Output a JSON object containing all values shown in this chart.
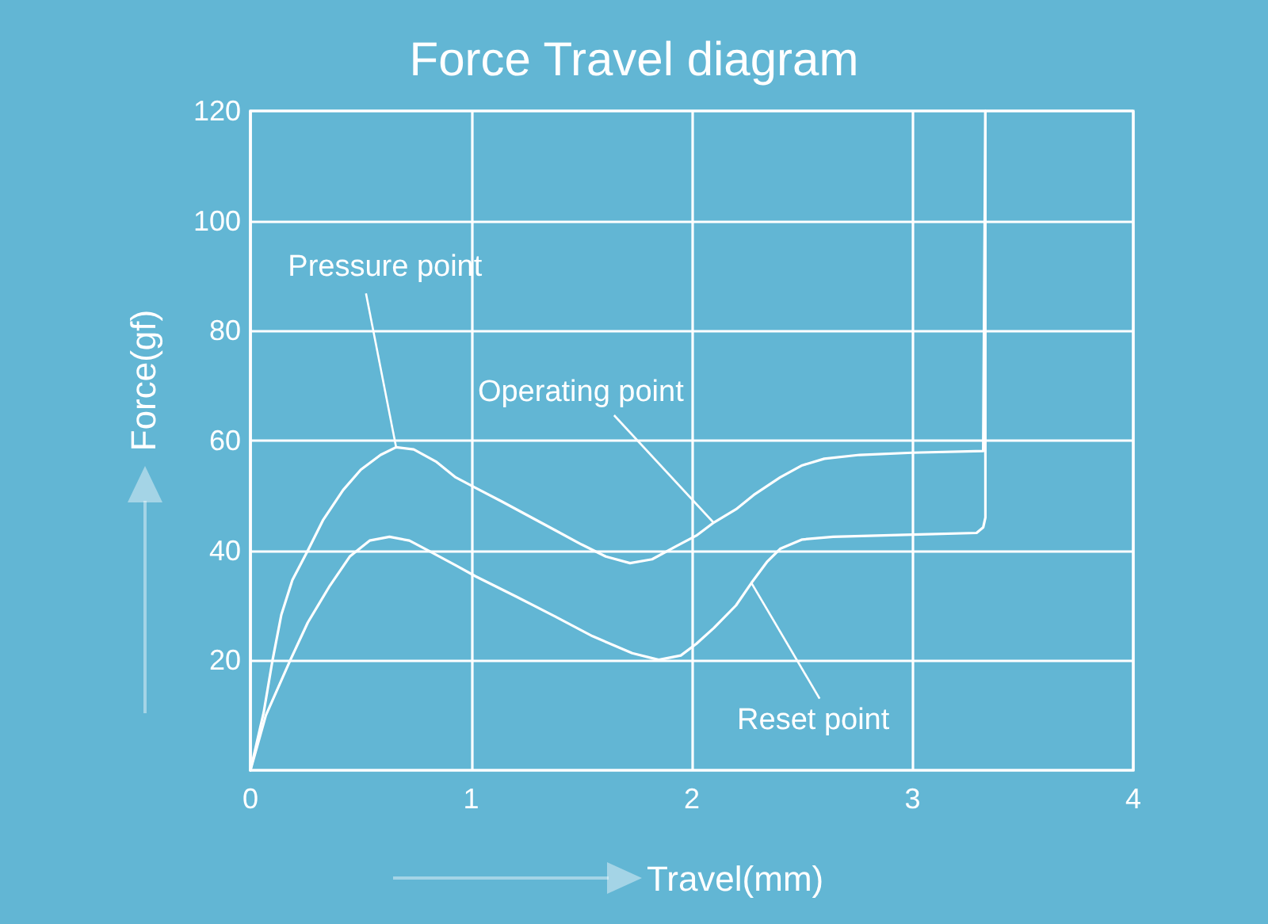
{
  "chart_data": {
    "type": "line",
    "title": "Force Travel diagram",
    "xlabel": "Travel(mm)",
    "ylabel": "Force(gf)",
    "xlim": [
      0,
      4
    ],
    "xticks": [
      0,
      1,
      2,
      3,
      4
    ],
    "ylim": [
      0,
      120
    ],
    "yticks": [
      20,
      40,
      60,
      80,
      100,
      120
    ],
    "grid": true,
    "marker": "none",
    "line_style": "solid",
    "annotations": [
      {
        "text": "Pressure point",
        "x": 0.66,
        "y": 58.8
      },
      {
        "text": "Operating point",
        "x": 2.1,
        "y": 45
      },
      {
        "text": "Reset point",
        "x": 2.27,
        "y": 34.1
      }
    ],
    "series": [
      {
        "color": "#ffffff",
        "x": [
          0,
          0.06,
          0.1,
          0.14,
          0.19,
          0.26,
          0.33,
          0.42,
          0.5,
          0.59,
          0.66,
          0.74,
          0.84,
          0.93,
          1.02,
          1.14,
          1.26,
          1.38,
          1.5,
          1.61,
          1.72,
          1.82,
          1.93,
          2.02,
          2.1,
          2.2,
          2.28,
          2.4,
          2.5,
          2.6,
          2.76,
          3.0,
          3.32,
          3.33
        ],
        "values": [
          0,
          10.5,
          20,
          28.3,
          34.6,
          40,
          45.6,
          51,
          54.7,
          57.4,
          58.8,
          58.4,
          56.2,
          53.3,
          51.4,
          48.9,
          46.3,
          43.7,
          41.1,
          38.9,
          37.7,
          38.4,
          40.8,
          42.7,
          45.1,
          47.5,
          50.1,
          53.3,
          55.5,
          56.7,
          57.4,
          57.8,
          58.1,
          120
        ]
      },
      {
        "color": "#ffffff",
        "x": [
          0,
          0.07,
          0.18,
          0.26,
          0.36,
          0.45,
          0.54,
          0.63,
          0.72,
          0.81,
          0.93,
          1.02,
          1.2,
          1.38,
          1.55,
          1.73,
          1.85,
          1.95,
          2.02,
          2.1,
          2.2,
          2.27,
          2.34,
          2.4,
          2.5,
          2.64,
          3.0,
          3.29,
          3.32,
          3.33,
          3.33
        ],
        "values": [
          0,
          10,
          20,
          26.9,
          33.6,
          38.9,
          41.8,
          42.5,
          41.8,
          39.9,
          37.3,
          35.3,
          31.7,
          28,
          24.4,
          21.3,
          20.1,
          20.9,
          23,
          25.9,
          30,
          34.1,
          37.9,
          40.3,
          42,
          42.5,
          42.9,
          43.2,
          44.2,
          46,
          120
        ]
      }
    ]
  }
}
